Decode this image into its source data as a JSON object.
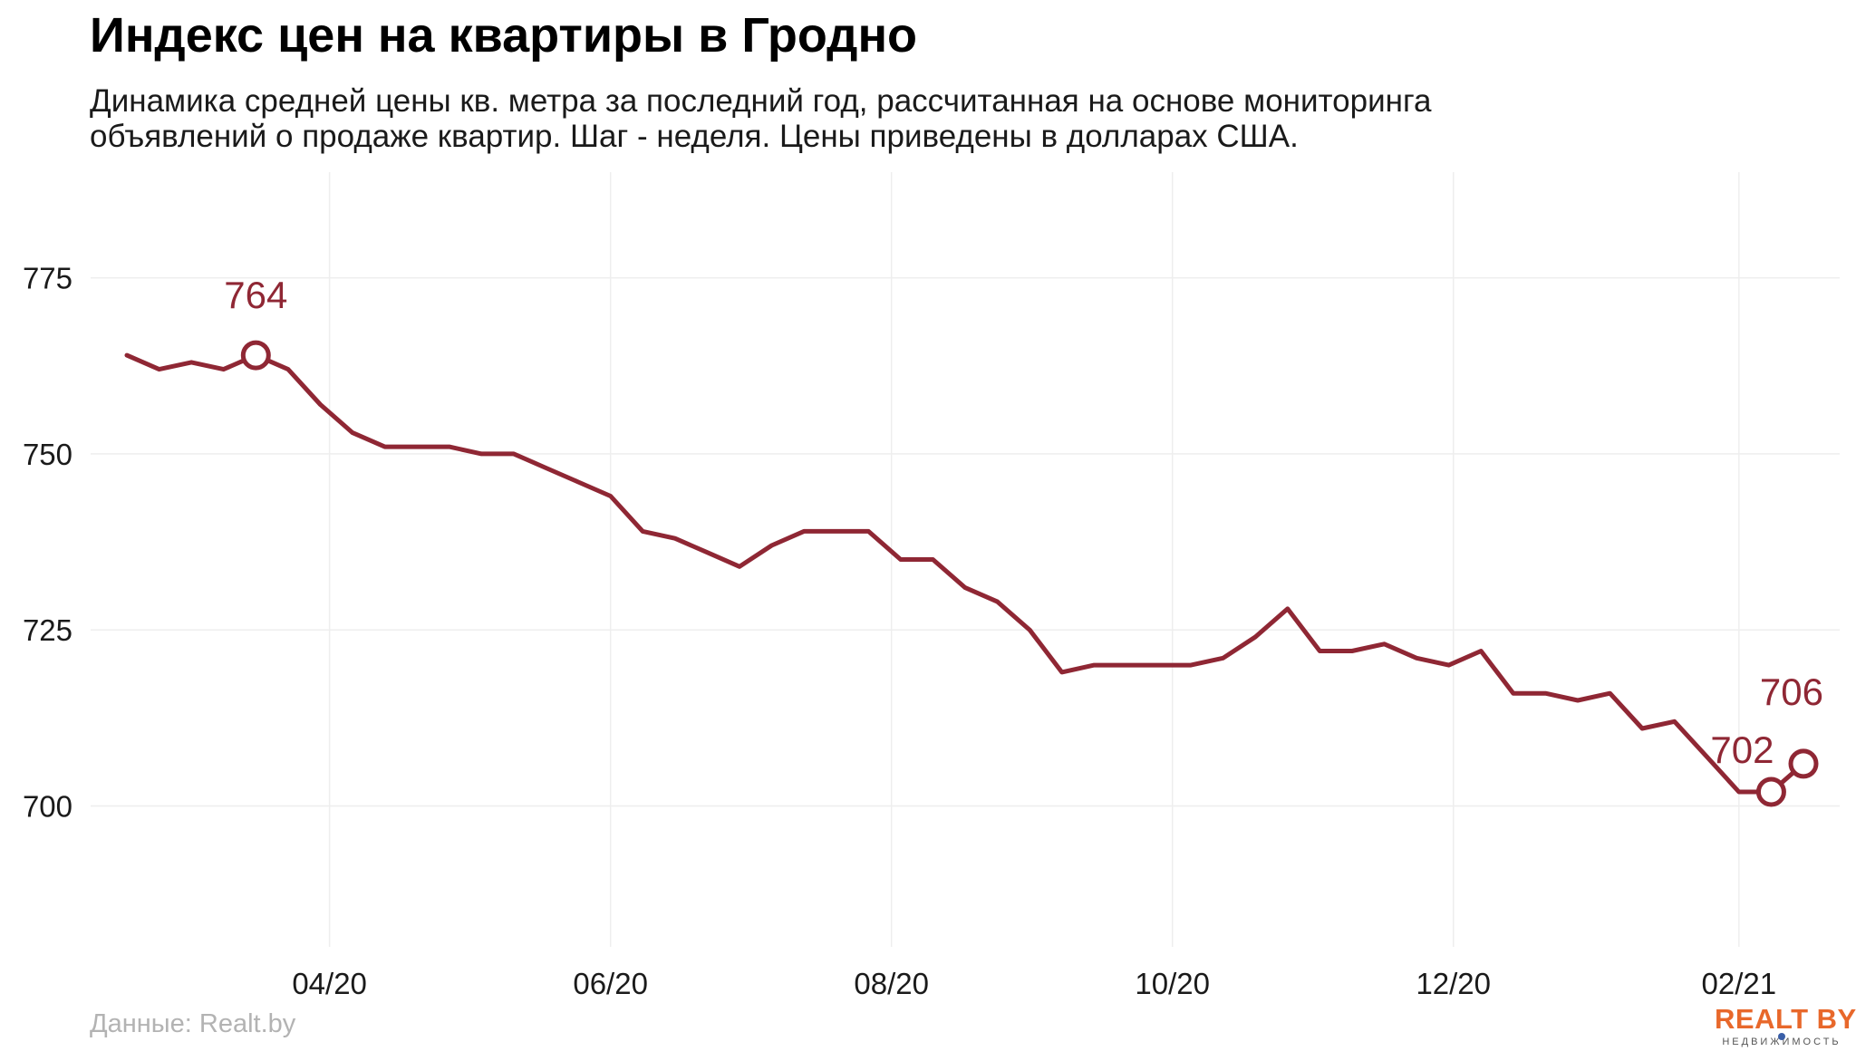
{
  "title": "Индекс цен на квартиры в Гродно",
  "subtitle_lines": [
    "Динамика средней цены кв. метра за последний год, рассчитанная на основе мониторинга",
    "объявлений о продаже квартир. Шаг - неделя. Цены приведены в долларах США."
  ],
  "source": "Данные: Realt.by",
  "logo": {
    "main": "REALT BY",
    "sub": "НЕДВИЖИМОСТЬ"
  },
  "colors": {
    "line": "#8f2734",
    "grid": "#eeeeee",
    "annotation": "#8f2734"
  },
  "chart_data": {
    "type": "line",
    "title": "Индекс цен на квартиры в Гродно",
    "xlabel": "",
    "ylabel": "",
    "grid": true,
    "ylim": [
      680,
      790
    ],
    "yticks": [
      700,
      725,
      750,
      775
    ],
    "xticks": [
      "04/20",
      "06/20",
      "08/20",
      "10/20",
      "12/20",
      "02/21"
    ],
    "x": [
      "2020-02-17",
      "2020-02-24",
      "2020-03-02",
      "2020-03-09",
      "2020-03-16",
      "2020-03-23",
      "2020-03-30",
      "2020-04-06",
      "2020-04-13",
      "2020-04-20",
      "2020-04-27",
      "2020-05-04",
      "2020-05-11",
      "2020-05-18",
      "2020-05-25",
      "2020-06-01",
      "2020-06-08",
      "2020-06-15",
      "2020-06-22",
      "2020-06-29",
      "2020-07-06",
      "2020-07-13",
      "2020-07-20",
      "2020-07-27",
      "2020-08-03",
      "2020-08-10",
      "2020-08-17",
      "2020-08-24",
      "2020-08-31",
      "2020-09-07",
      "2020-09-14",
      "2020-09-21",
      "2020-09-28",
      "2020-10-05",
      "2020-10-12",
      "2020-10-19",
      "2020-10-26",
      "2020-11-02",
      "2020-11-09",
      "2020-11-16",
      "2020-11-23",
      "2020-11-30",
      "2020-12-07",
      "2020-12-14",
      "2020-12-21",
      "2020-12-28",
      "2021-01-04",
      "2021-01-11",
      "2021-01-18",
      "2021-01-25",
      "2021-02-01",
      "2021-02-08",
      "2021-02-15"
    ],
    "series": [
      {
        "values": [
          764,
          762,
          763,
          762,
          764,
          762,
          757,
          753,
          751,
          751,
          751,
          750,
          750,
          748,
          746,
          744,
          739,
          738,
          736,
          734,
          737,
          739,
          739,
          739,
          735,
          735,
          731,
          729,
          725,
          719,
          720,
          720,
          720,
          720,
          721,
          724,
          728,
          722,
          722,
          723,
          721,
          720,
          722,
          716,
          716,
          715,
          716,
          711,
          712,
          707,
          702,
          702,
          706
        ]
      }
    ],
    "annotations": [
      {
        "x": "2020-03-16",
        "value": "764"
      },
      {
        "x": "2021-02-08",
        "value": "702"
      },
      {
        "x": "2021-02-15",
        "value": "706"
      }
    ]
  }
}
